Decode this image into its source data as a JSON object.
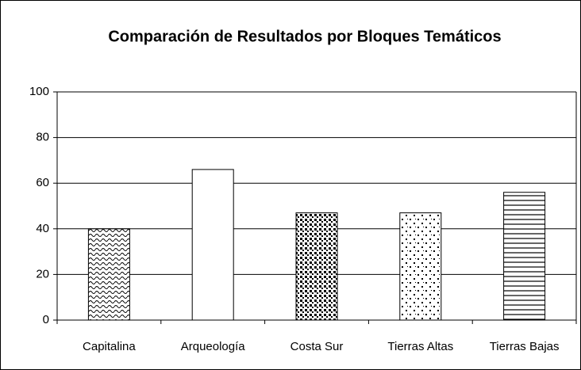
{
  "chart_data": {
    "type": "bar",
    "title": "Comparación de Resultados por Bloques Temáticos",
    "categories": [
      "Capitalina",
      "Arqueología",
      "Costa Sur",
      "Tierras Altas",
      "Tierras Bajas"
    ],
    "values": [
      40,
      66,
      47,
      47,
      56
    ],
    "color": "#000000",
    "ylim": [
      0,
      100
    ],
    "yticks": [
      0,
      20,
      40,
      60,
      80,
      100
    ],
    "grid": true
  }
}
